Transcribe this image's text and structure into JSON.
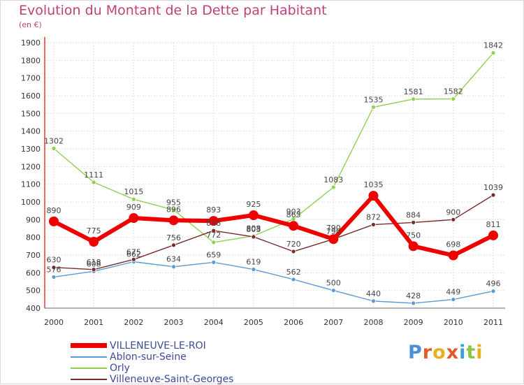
{
  "chart_data": {
    "type": "line",
    "title": "Evolution du Montant de la Dette par Habitant",
    "ylabel": "(en €)",
    "xlabel": "",
    "categories": [
      "2000",
      "2001",
      "2002",
      "2003",
      "2004",
      "2005",
      "2006",
      "2007",
      "2008",
      "2009",
      "2010",
      "2011"
    ],
    "ylim": [
      400,
      1900
    ],
    "yticks": [
      400,
      500,
      600,
      700,
      800,
      900,
      1000,
      1100,
      1200,
      1300,
      1400,
      1500,
      1600,
      1700,
      1800,
      1900
    ],
    "grid": true,
    "legend_position": "bottom-left",
    "series": [
      {
        "name": "VILLENEUVE-LE-ROI",
        "color": "#ee0000",
        "values": [
          890,
          775,
          909,
          896,
          893,
          925,
          865,
          790,
          1035,
          750,
          698,
          811
        ]
      },
      {
        "name": "Ablon-sur-Seine",
        "color": "#5b9bd5",
        "values": [
          576,
          608,
          662,
          634,
          659,
          619,
          562,
          500,
          440,
          428,
          449,
          496
        ]
      },
      {
        "name": "Orly",
        "color": "#8fd14f",
        "values": [
          1302,
          1111,
          1015,
          955,
          772,
          808,
          903,
          1083,
          1535,
          1581,
          1582,
          1842
        ]
      },
      {
        "name": "Villeneuve-Saint-Georges",
        "color": "#7a2a2a",
        "values": [
          630,
          618,
          675,
          756,
          838,
          803,
          720,
          790,
          872,
          884,
          900,
          1039
        ]
      }
    ]
  },
  "logo_text": "Proxiti"
}
